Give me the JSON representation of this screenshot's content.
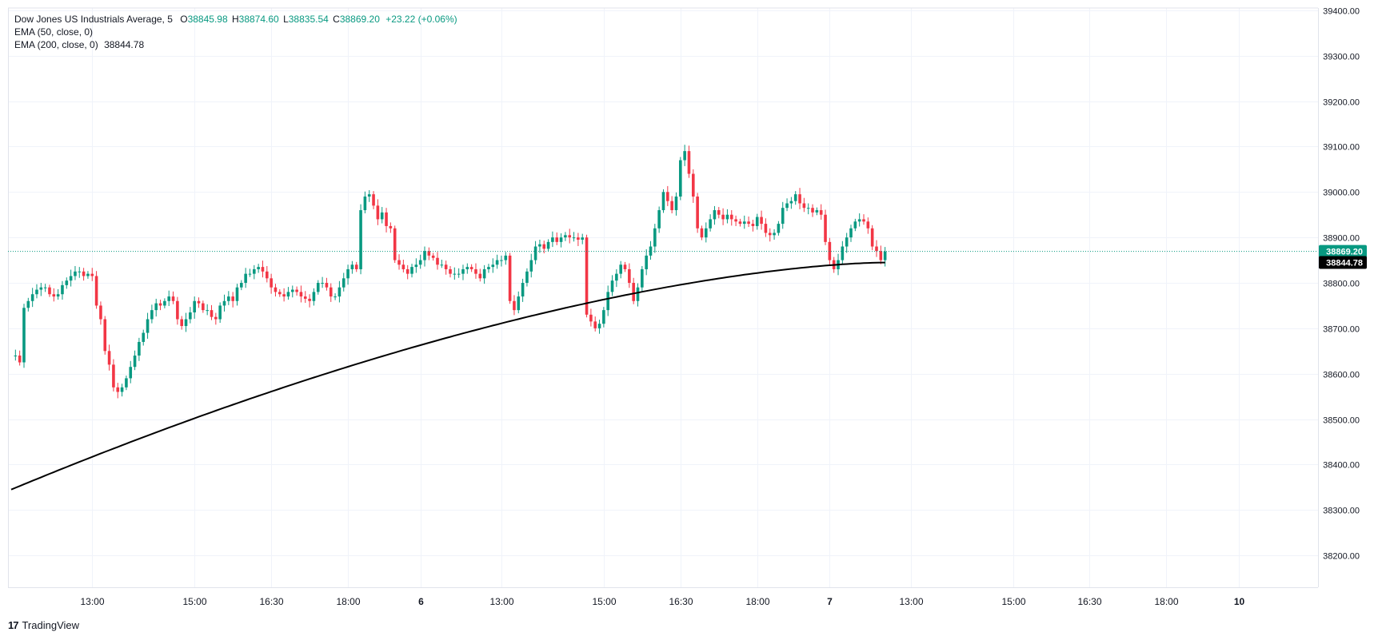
{
  "legend": {
    "title": "Dow Jones US Industrials Average, 5",
    "o_label": "O",
    "o_value": "38845.98",
    "h_label": "H",
    "h_value": "38874.60",
    "l_label": "L",
    "l_value": "38835.54",
    "c_label": "C",
    "c_value": "38869.20",
    "change": "+23.22 (+0.06%)",
    "ema50": "EMA (50, close, 0)",
    "ema200": "EMA (200, close, 0)",
    "ema200_value": "38844.78"
  },
  "brand": {
    "logo": "17",
    "name": "TradingView"
  },
  "colors": {
    "up": "#089981",
    "down": "#f23645",
    "ema200": "#000000",
    "grid": "#f0f3fa",
    "last_price_line": "#089981"
  },
  "chart_data": {
    "type": "candlestick",
    "ylim": [
      38130,
      39405
    ],
    "y_ticks": [
      {
        "value": 38200,
        "label": "38200.00"
      },
      {
        "value": 38300,
        "label": "38300.00"
      },
      {
        "value": 38400,
        "label": "38400.00"
      },
      {
        "value": 38500,
        "label": "38500.00"
      },
      {
        "value": 38600,
        "label": "38600.00"
      },
      {
        "value": 38700,
        "label": "38700.00"
      },
      {
        "value": 38800,
        "label": "38800.00"
      },
      {
        "value": 38900,
        "label": "38900.00"
      },
      {
        "value": 39000,
        "label": "39000.00"
      },
      {
        "value": 39100,
        "label": "39100.00"
      },
      {
        "value": 39200,
        "label": "39200.00"
      },
      {
        "value": 39300,
        "label": "39300.00"
      },
      {
        "value": 39400,
        "label": "39400.00"
      }
    ],
    "x_ticks": [
      {
        "index": 19,
        "label": "13:00",
        "bold": false
      },
      {
        "index": 43,
        "label": "15:00",
        "bold": false
      },
      {
        "index": 61,
        "label": "16:30",
        "bold": false
      },
      {
        "index": 79,
        "label": "18:00",
        "bold": false
      },
      {
        "index": 96,
        "label": "6",
        "bold": true
      },
      {
        "index": 115,
        "label": "13:00",
        "bold": false
      },
      {
        "index": 139,
        "label": "15:00",
        "bold": false
      },
      {
        "index": 157,
        "label": "16:30",
        "bold": false
      },
      {
        "index": 175,
        "label": "18:00",
        "bold": false
      },
      {
        "index": 192,
        "label": "7",
        "bold": true
      },
      {
        "index": 211,
        "label": "13:00",
        "bold": false
      },
      {
        "index": 235,
        "label": "15:00",
        "bold": false
      },
      {
        "index": 253,
        "label": "16:30",
        "bold": false
      },
      {
        "index": 271,
        "label": "18:00",
        "bold": false
      },
      {
        "index": 288,
        "label": "10",
        "bold": true
      }
    ],
    "last_price": {
      "value": 38869.2,
      "label": "38869.20"
    },
    "ema200_last": {
      "value": 38844.78,
      "label": "38844.78"
    },
    "ohlc_series": [
      38640,
      38640,
      38625,
      38745,
      38760,
      38775,
      38785,
      38790,
      38790,
      38775,
      38770,
      38775,
      38795,
      38805,
      38815,
      38825,
      38825,
      38815,
      38820,
      38815,
      38750,
      38720,
      38650,
      38620,
      38570,
      38560,
      38570,
      38590,
      38615,
      38640,
      38670,
      38690,
      38720,
      38740,
      38755,
      38750,
      38760,
      38770,
      38760,
      38720,
      38705,
      38720,
      38735,
      38760,
      38755,
      38740,
      38740,
      38725,
      38720,
      38750,
      38760,
      38770,
      38760,
      38790,
      38800,
      38820,
      38820,
      38830,
      38835,
      38825,
      38810,
      38790,
      38780,
      38775,
      38770,
      38780,
      38785,
      38780,
      38770,
      38765,
      38760,
      38780,
      38800,
      38800,
      38790,
      38770,
      38770,
      38790,
      38810,
      38830,
      38840,
      38830,
      38960,
      38990,
      38995,
      38970,
      38940,
      38955,
      38925,
      38920,
      38850,
      38840,
      38830,
      38820,
      38835,
      38840,
      38850,
      38870,
      38860,
      38855,
      38840,
      38840,
      38830,
      38820,
      38820,
      38820,
      38830,
      38835,
      38830,
      38820,
      38810,
      38830,
      38835,
      38840,
      38850,
      38850,
      38860,
      38760,
      38740,
      38770,
      38800,
      38825,
      38850,
      38880,
      38885,
      38875,
      38890,
      38900,
      38890,
      38900,
      38905,
      38900,
      38900,
      38895,
      38900,
      38730,
      38715,
      38700,
      38710,
      38740,
      38780,
      38805,
      38820,
      38840,
      38830,
      38800,
      38760,
      38790,
      38830,
      38860,
      38880,
      38920,
      38960,
      39000,
      38980,
      38960,
      38990,
      39070,
      39090,
      39040,
      38990,
      38920,
      38900,
      38920,
      38940,
      38960,
      38950,
      38940,
      38950,
      38940,
      38935,
      38930,
      38935,
      38930,
      38925,
      38945,
      38930,
      38910,
      38905,
      38910,
      38930,
      38965,
      38975,
      38980,
      38995,
      38975,
      38965,
      38965,
      38955,
      38960,
      38950,
      38890,
      38850,
      38830,
      38850,
      38880,
      38900,
      38920,
      38935,
      38940,
      38935,
      38920,
      38880,
      38870,
      38850,
      38869
    ]
  }
}
